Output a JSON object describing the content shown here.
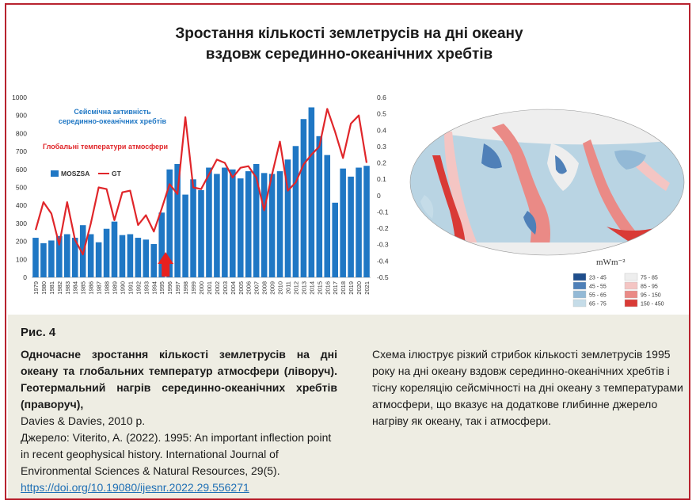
{
  "title_line1": "Зростання кількості землетрусів на дні океану",
  "title_line2": "вздовж серединно-океанічних хребтів",
  "chart_data": {
    "type": "bar",
    "title": "",
    "annotation_seismic_line1": "Сейсмічна активність",
    "annotation_seismic_line2": "серединно-океанічних хребтів",
    "annotation_temp": "Глобальні температури атмосфери",
    "categories": [
      "1979",
      "1980",
      "1981",
      "1982",
      "1983",
      "1984",
      "1985",
      "1986",
      "1987",
      "1988",
      "1989",
      "1990",
      "1991",
      "1992",
      "1993",
      "1994",
      "1995",
      "1996",
      "1997",
      "1998",
      "1999",
      "2000",
      "2001",
      "2002",
      "2003",
      "2004",
      "2005",
      "2006",
      "2007",
      "2008",
      "2009",
      "2010",
      "2011",
      "2012",
      "2013",
      "2014",
      "2015",
      "2016",
      "2017",
      "2018",
      "2019",
      "2020",
      "2021"
    ],
    "series": [
      {
        "name": "MOSZSA",
        "axis": "left",
        "color": "#1f77c4",
        "values": [
          220,
          190,
          205,
          230,
          240,
          220,
          290,
          240,
          195,
          270,
          310,
          235,
          240,
          220,
          210,
          185,
          360,
          600,
          630,
          460,
          545,
          485,
          610,
          575,
          610,
          600,
          550,
          590,
          630,
          580,
          575,
          590,
          655,
          730,
          880,
          945,
          785,
          680,
          415,
          605,
          560,
          610,
          620
        ]
      },
      {
        "name": "GT",
        "axis": "right",
        "color": "#e0262a",
        "values": [
          -0.21,
          -0.04,
          -0.11,
          -0.3,
          -0.04,
          -0.27,
          -0.36,
          -0.17,
          0.05,
          0.04,
          -0.15,
          0.02,
          0.03,
          -0.18,
          -0.12,
          -0.22,
          -0.08,
          0.07,
          0.01,
          0.48,
          0.05,
          0.04,
          0.13,
          0.22,
          0.2,
          0.11,
          0.17,
          0.18,
          0.11,
          -0.09,
          0.13,
          0.33,
          0.03,
          0.08,
          0.19,
          0.25,
          0.3,
          0.53,
          0.39,
          0.23,
          0.44,
          0.49,
          0.2
        ]
      }
    ],
    "left_axis": {
      "ylim": [
        0,
        1000
      ],
      "ticks": [
        0,
        100,
        200,
        300,
        400,
        500,
        600,
        700,
        800,
        900,
        1000
      ]
    },
    "right_axis": {
      "ylim": [
        -0.5,
        0.6
      ],
      "ticks": [
        "0.6",
        "0.5",
        "0.4",
        "0.3",
        "0.2",
        "0.1",
        "0",
        "-0.1",
        "-0.2",
        "-0.3",
        "-0.4",
        "-0.5"
      ]
    },
    "legend": [
      "MOSZSA",
      "GT"
    ],
    "arrow_year": "1995",
    "arrow_color": "#e8201f",
    "grid": false
  },
  "map_legend": {
    "unit": "mWm⁻²",
    "items": [
      {
        "label": "23 - 45",
        "color": "#1f4e8c"
      },
      {
        "label": "45 - 55",
        "color": "#4f80b8"
      },
      {
        "label": "55 - 65",
        "color": "#93b9d6"
      },
      {
        "label": "65 - 75",
        "color": "#c5dce8"
      },
      {
        "label": "75 - 85",
        "color": "#eeeeee"
      },
      {
        "label": "85 - 95",
        "color": "#f4c5c3"
      },
      {
        "label": "95 - 150",
        "color": "#ea8a86"
      },
      {
        "label": "150 - 450",
        "color": "#d93a36"
      }
    ]
  },
  "caption": {
    "fig_label": "Рис. 4",
    "bold_text": "Одночасне зростання кількості землетрусів на дні океану та глобальних температур атмосфери (ліворуч). Геотермальний нагрів серединно-океанічних хребтів (праворуч),",
    "author": "Davies & Davies, 2010 р.",
    "source": "Джерело: Viterito, A. (2022). 1995: An important inflection point in recent geophysical history. International Journal of Environmental Sciences & Natural Resources, 29(5).",
    "link": "https://doi.org/10.19080/ijesnr.2022.29.556271",
    "right_text": "Схема ілюструє різкий стрибок кількості землетрусів 1995 року на дні океану вздовж серединно-океанічних хребтів і тісну кореляцію сейсмічності на дні океану з температурами атмосфери, що вказує на додаткове глибинне джерело нагріву як океану, так і атмосфери."
  },
  "colors": {
    "frame": "#b8232f",
    "caption_bg": "#eeede3",
    "accent_blue": "#1f77c4",
    "accent_red": "#e0262a"
  }
}
